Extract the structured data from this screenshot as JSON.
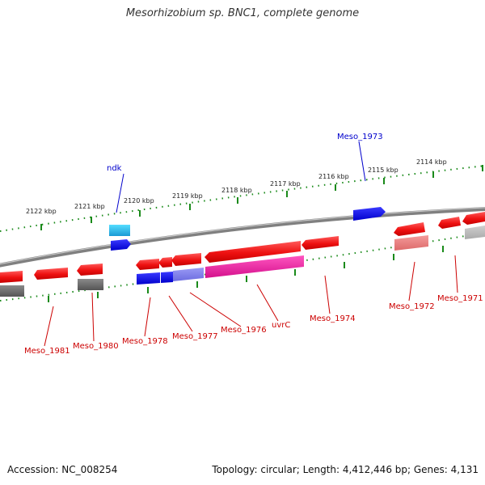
{
  "title": "Mesorhizobium sp. BNC1, complete genome",
  "footer": {
    "accession": "Accession: NC_008254",
    "stats": "Topology: circular; Length: 4,412,446 bp; Genes: 4,131"
  },
  "colors": {
    "forward_gene": "#ee1111",
    "reverse_gene": "#2222ee",
    "uvrC": "#ee1199",
    "ndk": "#33bbee",
    "grey_gene": "#666666",
    "backbone": "#888888",
    "tick": "#1a8a1a",
    "forward_label": "#cc0000",
    "reverse_label": "#0000cc"
  },
  "ticks": [
    "2122 kbp",
    "2121 kbp",
    "2120 kbp",
    "2119 kbp",
    "2118 kbp",
    "2117 kbp",
    "2116 kbp",
    "2115 kbp",
    "2114 kbp"
  ],
  "forward_labels": [
    "Meso_1981",
    "Meso_1980",
    "Meso_1978",
    "Meso_1977",
    "Meso_1976",
    "uvrC",
    "Meso_1974",
    "Meso_1972",
    "Meso_1971"
  ],
  "reverse_labels": [
    "ndk",
    "Meso_1973"
  ]
}
